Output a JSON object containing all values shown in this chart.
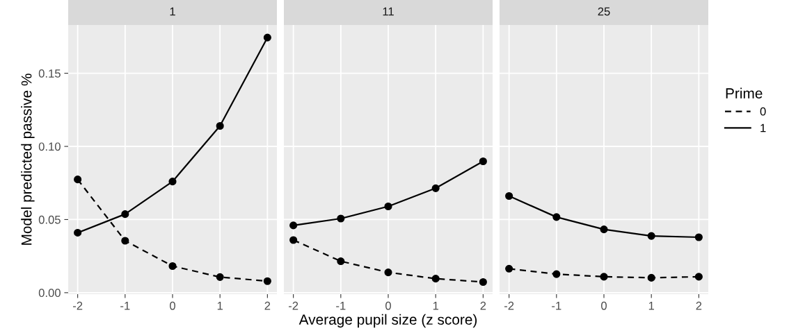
{
  "chart_data": [
    {
      "type": "line",
      "title": "1",
      "ylabel": "Model predicted passive %",
      "x": [
        -2,
        -1,
        0,
        1,
        2
      ],
      "xlim": [
        -2.2,
        2.2
      ],
      "xticks": [
        -2,
        -1,
        0,
        1,
        2
      ],
      "ylim": [
        -0.001,
        0.183
      ],
      "yticks": [
        {
          "value": 0,
          "label": "0.00"
        },
        {
          "value": 0.05,
          "label": "0.05"
        },
        {
          "value": 0.1,
          "label": "0.10"
        },
        {
          "value": 0.15,
          "label": "0.15"
        }
      ],
      "grid": true,
      "marker": "circle",
      "series": [
        {
          "color": "#000000",
          "line_style": "dashed",
          "values": [
            0.0774,
            0.0355,
            0.0182,
            0.0107,
            0.0079
          ]
        },
        {
          "color": "#000000",
          "line_style": "solid",
          "values": [
            0.041,
            0.0537,
            0.076,
            0.114,
            0.1744
          ]
        }
      ]
    },
    {
      "type": "line",
      "title": "11",
      "xlabel": "Average pupil size (z score)",
      "x": [
        -2,
        -1,
        0,
        1,
        2
      ],
      "xlim": [
        -2.2,
        2.2
      ],
      "xticks": [
        -2,
        -1,
        0,
        1,
        2
      ],
      "ylim": [
        -0.001,
        0.183
      ],
      "yticks": [
        {
          "value": 0,
          "label": null
        },
        {
          "value": 0.05,
          "label": null
        },
        {
          "value": 0.1,
          "label": null
        },
        {
          "value": 0.15,
          "label": null
        }
      ],
      "tick_labels": "x",
      "grid": true,
      "marker": "circle",
      "series": [
        {
          "color": "#000000",
          "line_style": "dashed",
          "values": [
            0.036,
            0.0215,
            0.0139,
            0.0096,
            0.0073
          ]
        },
        {
          "color": "#000000",
          "line_style": "solid",
          "values": [
            0.046,
            0.0507,
            0.059,
            0.0714,
            0.0898
          ]
        }
      ]
    },
    {
      "type": "line",
      "title": "25",
      "legend_title": "Prime",
      "x": [
        -2,
        -1,
        0,
        1,
        2
      ],
      "xlim": [
        -2.2,
        2.2
      ],
      "xticks": [
        -2,
        -1,
        0,
        1,
        2
      ],
      "ylim": [
        -0.001,
        0.183
      ],
      "yticks": [
        {
          "value": 0,
          "label": null
        },
        {
          "value": 0.05,
          "label": null
        },
        {
          "value": 0.1,
          "label": null
        },
        {
          "value": 0.15,
          "label": null
        }
      ],
      "tick_labels": "x",
      "grid": true,
      "marker": "circle",
      "legend": "right",
      "series": [
        {
          "name": "0",
          "color": "#000000",
          "line_style": "dashed",
          "values": [
            0.0164,
            0.0127,
            0.0109,
            0.0102,
            0.0109
          ]
        },
        {
          "name": "1",
          "color": "#000000",
          "line_style": "solid",
          "values": [
            0.0661,
            0.0517,
            0.0433,
            0.0388,
            0.0379
          ]
        }
      ]
    }
  ]
}
